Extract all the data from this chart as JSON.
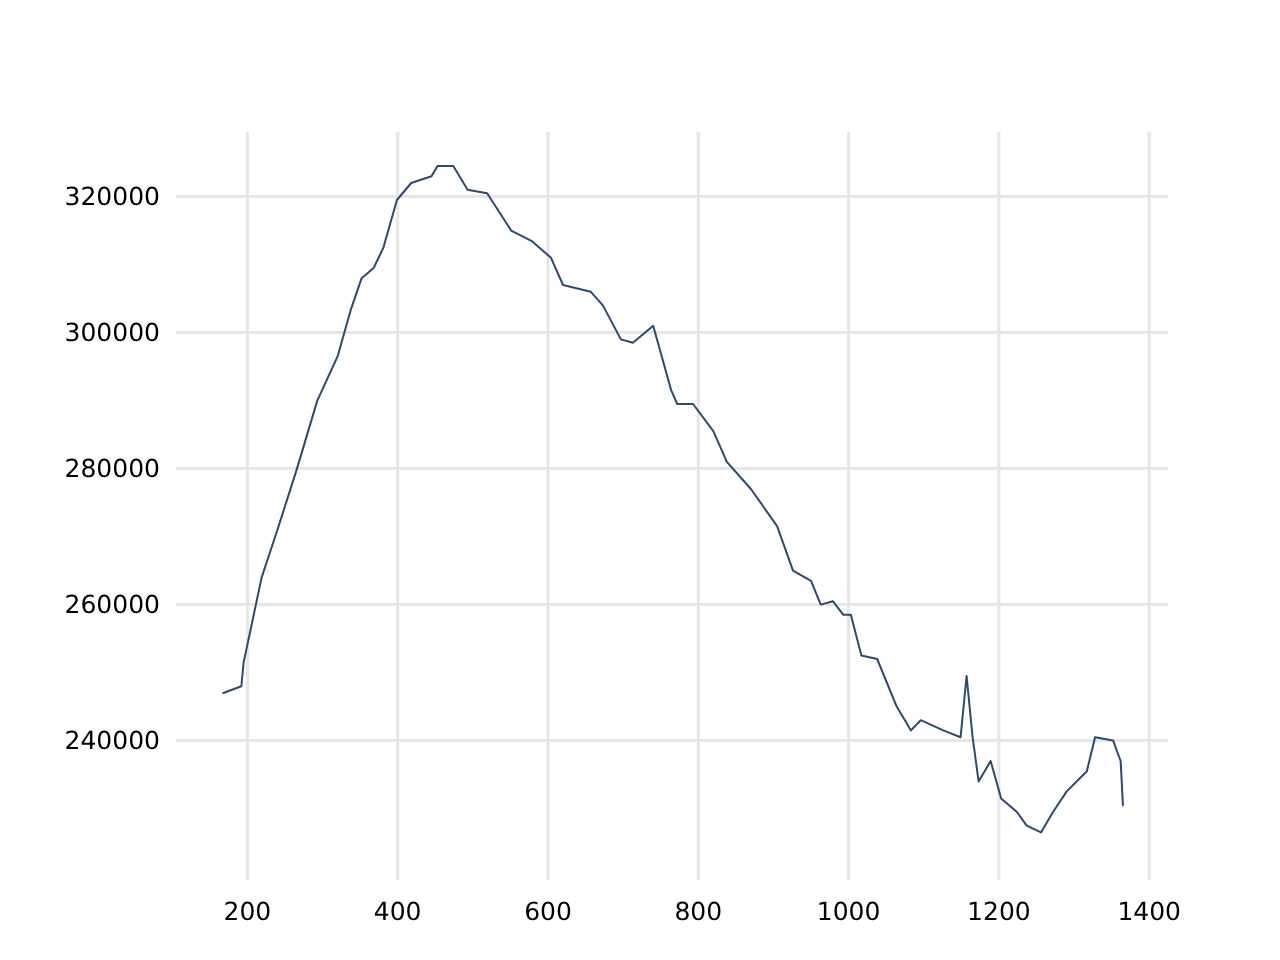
{
  "chart_data": {
    "type": "line",
    "xlim": [
      105,
      1425
    ],
    "ylim": [
      219500,
      329500
    ],
    "xticks": [
      200,
      400,
      600,
      800,
      1000,
      1200,
      1400
    ],
    "yticks": [
      240000,
      260000,
      280000,
      300000,
      320000
    ],
    "grid": true,
    "series": [
      {
        "color": "#2b4a6f",
        "x": [
          168,
          192,
          195,
          219,
          240,
          266,
          293,
          320,
          338,
          352,
          368,
          381,
          399,
          418,
          445,
          453,
          474,
          493,
          519,
          551,
          578,
          604,
          620,
          657,
          673,
          697,
          713,
          740,
          764,
          772,
          793,
          820,
          838,
          870,
          905,
          926,
          950,
          963,
          979,
          993,
          1003,
          1017,
          1038,
          1064,
          1083,
          1096,
          1126,
          1149,
          1157,
          1165,
          1173,
          1189,
          1203,
          1224,
          1237,
          1256,
          1272,
          1290,
          1317,
          1328,
          1352,
          1362,
          1365
        ],
        "values": [
          247000,
          248000,
          251500,
          264000,
          271000,
          280000,
          290000,
          296500,
          303500,
          308000,
          309500,
          312500,
          319500,
          322000,
          323000,
          324500,
          324500,
          321000,
          320500,
          315000,
          313500,
          311000,
          307000,
          306000,
          304000,
          299000,
          298500,
          301000,
          291500,
          289500,
          289500,
          285500,
          281000,
          277000,
          271500,
          265000,
          263500,
          260000,
          260500,
          258500,
          258500,
          252500,
          252000,
          245000,
          241500,
          243000,
          241500,
          240500,
          249500,
          240500,
          234000,
          237000,
          231500,
          229500,
          227500,
          226500,
          229500,
          232500,
          235500,
          240500,
          240000,
          237000,
          230500
        ]
      }
    ]
  }
}
